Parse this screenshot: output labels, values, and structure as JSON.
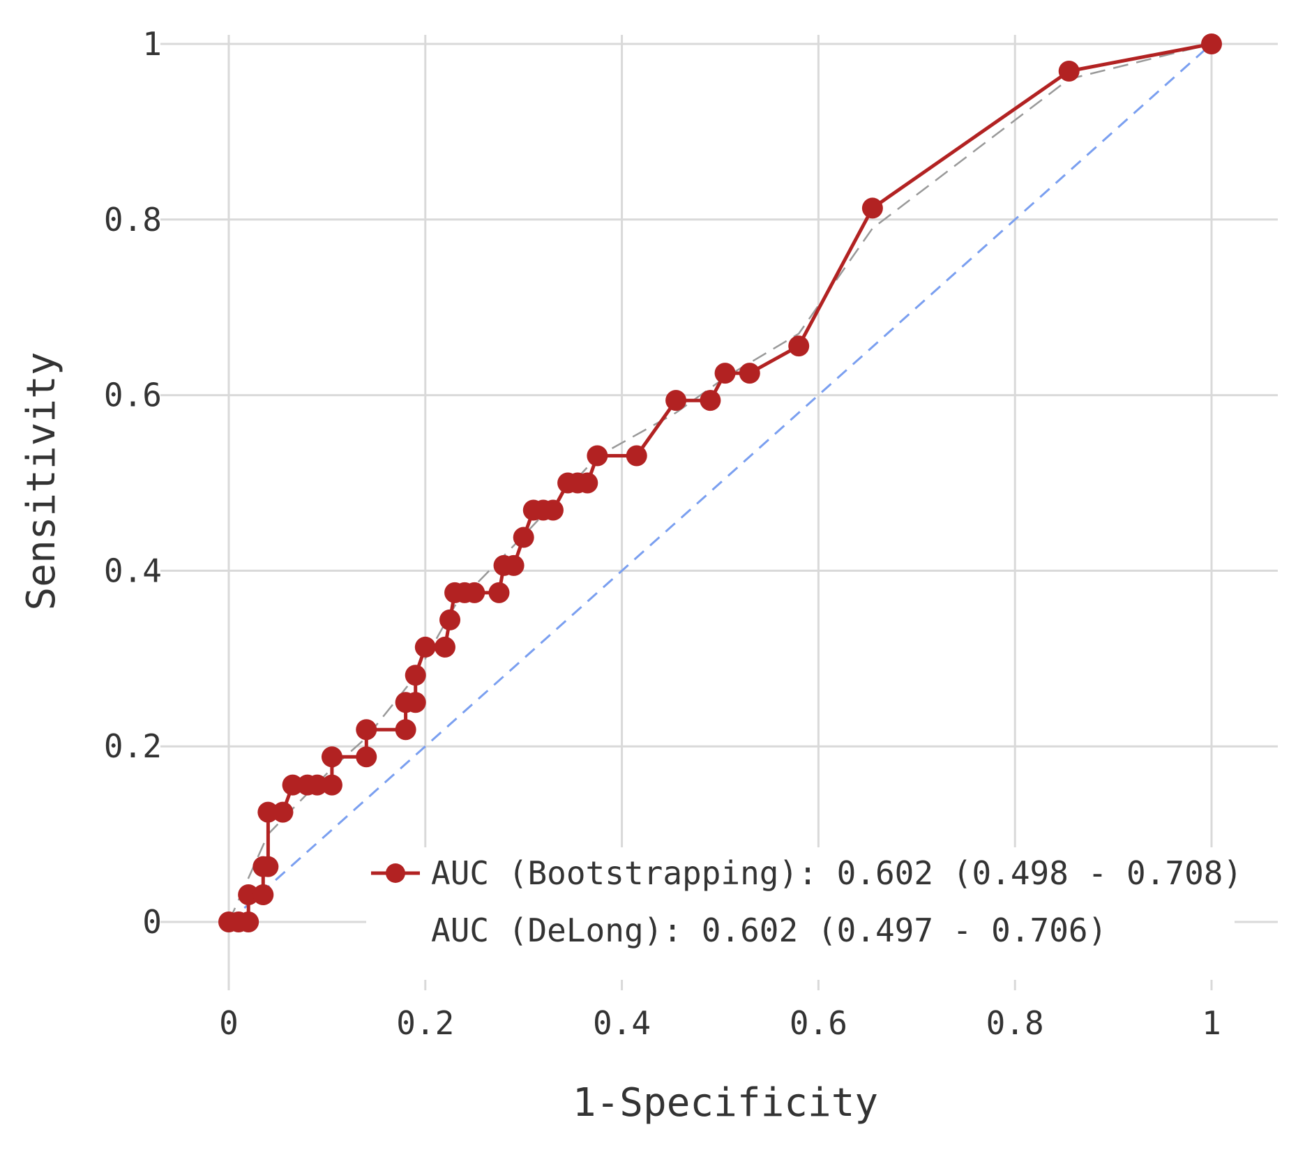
{
  "chart_data": {
    "type": "line",
    "title": "",
    "xlabel": "1-Specificity",
    "ylabel": "Sensitivity",
    "xlim": [
      0,
      1
    ],
    "ylim": [
      0,
      1
    ],
    "xticks": [
      0,
      0.2,
      0.4,
      0.6,
      0.8,
      1
    ],
    "yticks": [
      0,
      0.2,
      0.4,
      0.6,
      0.8,
      1
    ],
    "xtick_labels": [
      "0",
      "0.2",
      "0.4",
      "0.6",
      "0.8",
      "1"
    ],
    "ytick_labels": [
      "0",
      "0.2",
      "0.4",
      "0.6",
      "0.8",
      "1"
    ],
    "grid": true,
    "legend_position": "bottom-right",
    "colors": {
      "roc": "#b22222",
      "diagonal": "#7a9ff0",
      "smooth": "#999999",
      "grid": "#d9d9d9"
    },
    "series": [
      {
        "name": "AUC (Bootstrapping): 0.602 (0.498 - 0.708)",
        "role": "roc",
        "x": [
          0,
          0.01,
          0.02,
          0.02,
          0.035,
          0.035,
          0.04,
          0.04,
          0.055,
          0.065,
          0.08,
          0.09,
          0.105,
          0.105,
          0.14,
          0.14,
          0.18,
          0.18,
          0.19,
          0.19,
          0.2,
          0.22,
          0.225,
          0.23,
          0.24,
          0.25,
          0.275,
          0.28,
          0.29,
          0.3,
          0.31,
          0.32,
          0.33,
          0.345,
          0.355,
          0.365,
          0.375,
          0.415,
          0.455,
          0.49,
          0.505,
          0.53,
          0.58,
          0.655,
          0.855,
          1
        ],
        "y": [
          0,
          0,
          0,
          0.031,
          0.031,
          0.063,
          0.063,
          0.125,
          0.125,
          0.156,
          0.156,
          0.156,
          0.156,
          0.188,
          0.188,
          0.219,
          0.219,
          0.25,
          0.25,
          0.281,
          0.313,
          0.313,
          0.344,
          0.375,
          0.375,
          0.375,
          0.375,
          0.406,
          0.406,
          0.438,
          0.469,
          0.469,
          0.469,
          0.5,
          0.5,
          0.5,
          0.531,
          0.531,
          0.594,
          0.594,
          0.625,
          0.625,
          0.656,
          0.813,
          0.969,
          1
        ]
      },
      {
        "name": "AUC (DeLong): 0.602 (0.497 - 0.706)",
        "role": "smooth",
        "x": [
          0,
          0.04,
          0.105,
          0.14,
          0.19,
          0.23,
          0.3,
          0.375,
          0.455,
          0.505,
          0.58,
          0.655,
          0.855,
          1
        ],
        "y": [
          0,
          0.1,
          0.175,
          0.21,
          0.28,
          0.36,
          0.44,
          0.53,
          0.58,
          0.62,
          0.67,
          0.79,
          0.96,
          1
        ]
      },
      {
        "name": "chance",
        "role": "diagonal",
        "x": [
          0,
          1
        ],
        "y": [
          0,
          1
        ]
      }
    ],
    "legend": [
      "AUC (Bootstrapping): 0.602 (0.498 - 0.708)",
      "AUC (DeLong): 0.602 (0.497 - 0.706)"
    ]
  }
}
